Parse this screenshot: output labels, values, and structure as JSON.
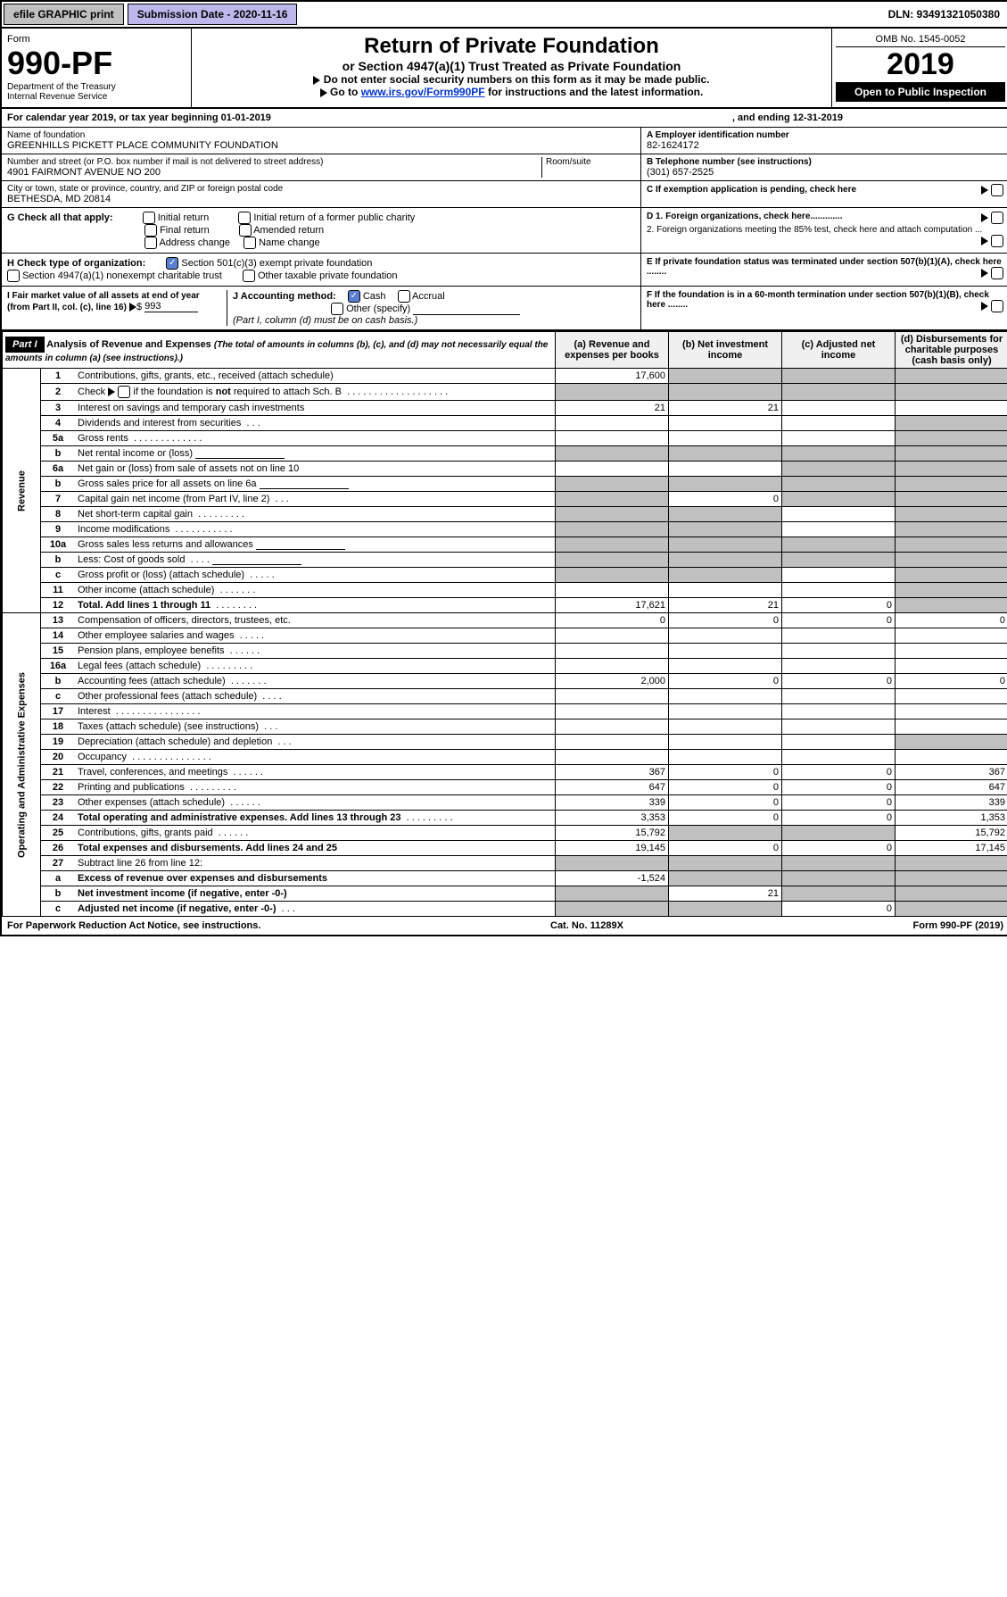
{
  "topbar": {
    "efile": "efile GRAPHIC print",
    "subdate": "Submission Date - 2020-11-16",
    "dln": "DLN: 93491321050380"
  },
  "header": {
    "form_word": "Form",
    "form_no": "990-PF",
    "dept1": "Department of the Treasury",
    "dept2": "Internal Revenue Service",
    "title": "Return of Private Foundation",
    "subtitle": "or Section 4947(a)(1) Trust Treated as Private Foundation",
    "instr1": "Do not enter social security numbers on this form as it may be made public.",
    "instr2a": "Go to ",
    "instr2_link": "www.irs.gov/Form990PF",
    "instr2b": " for instructions and the latest information.",
    "omb": "OMB No. 1545-0052",
    "year": "2019",
    "open": "Open to Public Inspection"
  },
  "calyear": {
    "a": "For calendar year 2019, or tax year beginning 01-01-2019",
    "b": ", and ending 12-31-2019"
  },
  "info": {
    "name_lbl": "Name of foundation",
    "name": "GREENHILLS PICKETT PLACE COMMUNITY FOUNDATION",
    "addr_lbl": "Number and street (or P.O. box number if mail is not delivered to street address)",
    "addr": "4901 FAIRMONT AVENUE NO 200",
    "room_lbl": "Room/suite",
    "city_lbl": "City or town, state or province, country, and ZIP or foreign postal code",
    "city": "BETHESDA, MD  20814",
    "ein_lbl": "A Employer identification number",
    "ein": "82-1624172",
    "tel_lbl": "B Telephone number (see instructions)",
    "tel": "(301) 657-2525",
    "c": "C  If exemption application is pending, check here",
    "d1": "D 1. Foreign organizations, check here.............",
    "d2": "2. Foreign organizations meeting the 85% test, check here and attach computation ...",
    "e": "E  If private foundation status was terminated under section 507(b)(1)(A), check here ........",
    "f": "F  If the foundation is in a 60-month termination under section 507(b)(1)(B), check here ........"
  },
  "g": {
    "lbl": "G Check all that apply:",
    "opts": [
      "Initial return",
      "Initial return of a former public charity",
      "Final return",
      "Amended return",
      "Address change",
      "Name change"
    ]
  },
  "h": {
    "lbl": "H Check type of organization:",
    "opt1": "Section 501(c)(3) exempt private foundation",
    "opt2": "Section 4947(a)(1) nonexempt charitable trust",
    "opt3": "Other taxable private foundation"
  },
  "i": {
    "lbl": "I Fair market value of all assets at end of year (from Part II, col. (c), line 16)",
    "val": "993"
  },
  "j": {
    "lbl": "J Accounting method:",
    "cash": "Cash",
    "accrual": "Accrual",
    "other": "Other (specify)",
    "note": "(Part I, column (d) must be on cash basis.)"
  },
  "part1": {
    "hdr": "Part I",
    "title": "Analysis of Revenue and Expenses",
    "title_note": "(The total of amounts in columns (b), (c), and (d) may not necessarily equal the amounts in column (a) (see instructions).)",
    "cols": {
      "a": "Revenue and expenses per books",
      "b": "Net investment income",
      "c": "Adjusted net income",
      "d": "Disbursements for charitable purposes (cash basis only)"
    },
    "sections": {
      "rev": "Revenue",
      "exp": "Operating and Administrative Expenses"
    },
    "rows": [
      {
        "s": "rev",
        "n": "1",
        "d": "Contributions, gifts, grants, etc., received (attach schedule)",
        "a": "17,600",
        "bgrey": true,
        "cgrey": true,
        "dgrey": true
      },
      {
        "s": "rev",
        "n": "2",
        "d": "Check ▶ ☐ if the foundation is not required to attach Sch. B",
        "dots": ". . . . . . . . . . . . . . . . . . .",
        "agrey": true,
        "bgrey": true,
        "cgrey": true,
        "dgrey": true
      },
      {
        "s": "rev",
        "n": "3",
        "d": "Interest on savings and temporary cash investments",
        "a": "21",
        "b": "21"
      },
      {
        "s": "rev",
        "n": "4",
        "d": "Dividends and interest from securities",
        "dots": ". . .",
        "dgrey": true
      },
      {
        "s": "rev",
        "n": "5a",
        "d": "Gross rents",
        "dots": ". . . . . . . . . . . . .",
        "dgrey": true
      },
      {
        "s": "rev",
        "n": "b",
        "d": "Net rental income or (loss)",
        "line": true,
        "agrey": true,
        "bgrey": true,
        "cgrey": true,
        "dgrey": true
      },
      {
        "s": "rev",
        "n": "6a",
        "d": "Net gain or (loss) from sale of assets not on line 10",
        "cgrey": true,
        "dgrey": true
      },
      {
        "s": "rev",
        "n": "b",
        "d": "Gross sales price for all assets on line 6a",
        "line": true,
        "agrey": true,
        "bgrey": true,
        "cgrey": true,
        "dgrey": true
      },
      {
        "s": "rev",
        "n": "7",
        "d": "Capital gain net income (from Part IV, line 2)",
        "dots": ". . .",
        "b": "0",
        "agrey": true,
        "cgrey": true,
        "dgrey": true
      },
      {
        "s": "rev",
        "n": "8",
        "d": "Net short-term capital gain",
        "dots": ". . . . . . . . .",
        "agrey": true,
        "bgrey": true,
        "dgrey": true
      },
      {
        "s": "rev",
        "n": "9",
        "d": "Income modifications",
        "dots": ". . . . . . . . . . .",
        "agrey": true,
        "bgrey": true,
        "dgrey": true
      },
      {
        "s": "rev",
        "n": "10a",
        "d": "Gross sales less returns and allowances",
        "line": true,
        "agrey": true,
        "bgrey": true,
        "cgrey": true,
        "dgrey": true
      },
      {
        "s": "rev",
        "n": "b",
        "d": "Less: Cost of goods sold",
        "dots": ". . . .",
        "line": true,
        "agrey": true,
        "bgrey": true,
        "cgrey": true,
        "dgrey": true
      },
      {
        "s": "rev",
        "n": "c",
        "d": "Gross profit or (loss) (attach schedule)",
        "dots": ". . . . .",
        "agrey": true,
        "bgrey": true,
        "dgrey": true
      },
      {
        "s": "rev",
        "n": "11",
        "d": "Other income (attach schedule)",
        "dots": ". . . . . . .",
        "dgrey": true
      },
      {
        "s": "rev",
        "n": "12",
        "d": "Total. Add lines 1 through 11",
        "dots": ". . . . . . . .",
        "bold": true,
        "a": "17,621",
        "b": "21",
        "c": "0",
        "dgrey": true
      },
      {
        "s": "exp",
        "n": "13",
        "d": "Compensation of officers, directors, trustees, etc.",
        "a": "0",
        "b": "0",
        "c": "0",
        "dv": "0"
      },
      {
        "s": "exp",
        "n": "14",
        "d": "Other employee salaries and wages",
        "dots": ". . . . ."
      },
      {
        "s": "exp",
        "n": "15",
        "d": "Pension plans, employee benefits",
        "dots": ". . . . . ."
      },
      {
        "s": "exp",
        "n": "16a",
        "d": "Legal fees (attach schedule)",
        "dots": ". . . . . . . . ."
      },
      {
        "s": "exp",
        "n": "b",
        "d": "Accounting fees (attach schedule)",
        "dots": ". . . . . . .",
        "a": "2,000",
        "b": "0",
        "c": "0",
        "dv": "0"
      },
      {
        "s": "exp",
        "n": "c",
        "d": "Other professional fees (attach schedule)",
        "dots": ". . . ."
      },
      {
        "s": "exp",
        "n": "17",
        "d": "Interest",
        "dots": ". . . . . . . . . . . . . . . ."
      },
      {
        "s": "exp",
        "n": "18",
        "d": "Taxes (attach schedule) (see instructions)",
        "dots": ". . ."
      },
      {
        "s": "exp",
        "n": "19",
        "d": "Depreciation (attach schedule) and depletion",
        "dots": ". . .",
        "dgrey": true
      },
      {
        "s": "exp",
        "n": "20",
        "d": "Occupancy",
        "dots": ". . . . . . . . . . . . . . ."
      },
      {
        "s": "exp",
        "n": "21",
        "d": "Travel, conferences, and meetings",
        "dots": ". . . . . .",
        "a": "367",
        "b": "0",
        "c": "0",
        "dv": "367"
      },
      {
        "s": "exp",
        "n": "22",
        "d": "Printing and publications",
        "dots": ". . . . . . . . .",
        "a": "647",
        "b": "0",
        "c": "0",
        "dv": "647"
      },
      {
        "s": "exp",
        "n": "23",
        "d": "Other expenses (attach schedule)",
        "dots": ". . . . . .",
        "a": "339",
        "b": "0",
        "c": "0",
        "dv": "339"
      },
      {
        "s": "exp",
        "n": "24",
        "d": "Total operating and administrative expenses. Add lines 13 through 23",
        "dots": ". . . . . . . . .",
        "bold": true,
        "a": "3,353",
        "b": "0",
        "c": "0",
        "dv": "1,353"
      },
      {
        "s": "exp",
        "n": "25",
        "d": "Contributions, gifts, grants paid",
        "dots": ". . . . . .",
        "a": "15,792",
        "bgrey": true,
        "cgrey": true,
        "dv": "15,792"
      },
      {
        "s": "exp",
        "n": "26",
        "d": "Total expenses and disbursements. Add lines 24 and 25",
        "bold": true,
        "a": "19,145",
        "b": "0",
        "c": "0",
        "dv": "17,145"
      },
      {
        "s": "exp",
        "n": "27",
        "d": "Subtract line 26 from line 12:",
        "agrey": true,
        "bgrey": true,
        "cgrey": true,
        "dgrey": true
      },
      {
        "s": "exp",
        "n": "a",
        "d": "Excess of revenue over expenses and disbursements",
        "bold": true,
        "a": "-1,524",
        "bgrey": true,
        "cgrey": true,
        "dgrey": true
      },
      {
        "s": "exp",
        "n": "b",
        "d": "Net investment income (if negative, enter -0-)",
        "bold": true,
        "b": "21",
        "agrey": true,
        "cgrey": true,
        "dgrey": true
      },
      {
        "s": "exp",
        "n": "c",
        "d": "Adjusted net income (if negative, enter -0-)",
        "dots": ". . .",
        "bold": true,
        "c": "0",
        "agrey": true,
        "bgrey": true,
        "dgrey": true
      }
    ]
  },
  "footer": {
    "l": "For Paperwork Reduction Act Notice, see instructions.",
    "m": "Cat. No. 11289X",
    "r": "Form 990-PF (2019)"
  }
}
